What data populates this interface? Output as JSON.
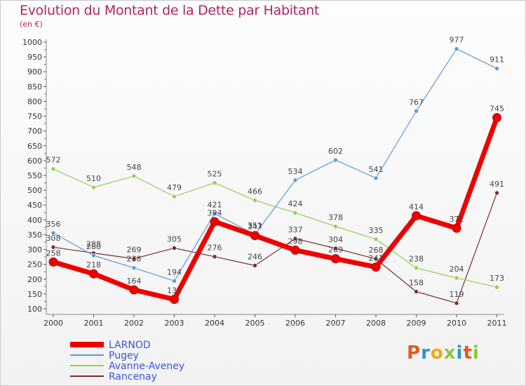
{
  "title": "Evolution du Montant de la Dette par Habitant",
  "subtitle": "(en €)",
  "logo": [
    "P",
    "r",
    "o",
    "x",
    "i",
    "t",
    "i"
  ],
  "logo_colors": [
    "#e25a1c",
    "#2f8fd8",
    "#f2a516",
    "#8cc63f",
    "#2f8fd8",
    "#e25a1c",
    "#8cc63f"
  ],
  "chart_data": {
    "type": "line",
    "x": [
      "2000",
      "2001",
      "2002",
      "2003",
      "2004",
      "2005",
      "2006",
      "2007",
      "2008",
      "2009",
      "2010",
      "2011"
    ],
    "ylim": [
      100,
      1000
    ],
    "yticks": [
      100,
      150,
      200,
      250,
      300,
      350,
      400,
      450,
      500,
      550,
      600,
      650,
      700,
      750,
      800,
      850,
      900,
      950,
      1000
    ],
    "grid": false,
    "legend_position": "bottom-left",
    "series": [
      {
        "name": "LARNOD",
        "color": "#ee0000",
        "values": [
          258,
          218,
          164,
          132,
          394,
          347,
          298,
          269,
          241,
          414,
          372,
          745
        ]
      },
      {
        "name": "Pugey",
        "color": "#5b9bd5",
        "values": [
          356,
          280,
          238,
          194,
          421,
          351,
          534,
          602,
          541,
          767,
          977,
          911
        ]
      },
      {
        "name": "Avanne-Aveney",
        "color": "#92d050",
        "values": [
          572,
          510,
          548,
          479,
          525,
          466,
          424,
          378,
          335,
          238,
          204,
          173
        ]
      },
      {
        "name": "Rancenay",
        "color": "#7b2c2c",
        "values": [
          308,
          288,
          269,
          305,
          276,
          246,
          337,
          304,
          268,
          158,
          119,
          491
        ]
      }
    ]
  }
}
